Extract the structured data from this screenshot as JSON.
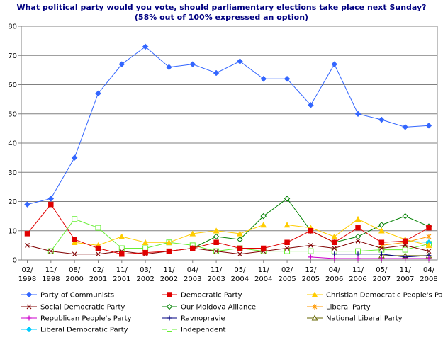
{
  "chart_data": {
    "type": "line",
    "title": "What political party would you vote, should parliamentary elections take place next Sunday?",
    "subtitle": "(58% out of 100% expressed an option)",
    "xlabel": "",
    "ylabel": "",
    "ylim": [
      0,
      80
    ],
    "yticks": [
      0,
      10,
      20,
      30,
      40,
      50,
      60,
      70,
      80
    ],
    "grid": true,
    "legend_position": "bottom",
    "categories": [
      {
        "top": "02/",
        "bottom": "1998"
      },
      {
        "top": "11/",
        "bottom": "1998"
      },
      {
        "top": "08/",
        "bottom": "2000"
      },
      {
        "top": "02/",
        "bottom": "2001"
      },
      {
        "top": "11/",
        "bottom": "2001"
      },
      {
        "top": "03/",
        "bottom": "2002"
      },
      {
        "top": "11/",
        "bottom": "2002"
      },
      {
        "top": "04/",
        "bottom": "2003"
      },
      {
        "top": "11/",
        "bottom": "2003"
      },
      {
        "top": "05/",
        "bottom": "2004"
      },
      {
        "top": "11/",
        "bottom": "2004"
      },
      {
        "top": "02/",
        "bottom": "2005"
      },
      {
        "top": "12/",
        "bottom": "2005"
      },
      {
        "top": "04/",
        "bottom": "2006"
      },
      {
        "top": "11/",
        "bottom": "2006"
      },
      {
        "top": "05/",
        "bottom": "2007"
      },
      {
        "top": "11/",
        "bottom": "2007"
      },
      {
        "top": "04/",
        "bottom": "2008"
      }
    ],
    "series": [
      {
        "name": "Party of Communists",
        "color": "#3366ff",
        "marker": "diamond",
        "values": [
          19,
          21,
          35,
          57,
          67,
          73,
          66,
          67,
          64,
          68,
          62,
          62,
          53,
          67,
          50,
          48,
          45.5,
          46
        ]
      },
      {
        "name": "Democratic Party",
        "color": "#e00000",
        "marker": "square",
        "values": [
          9,
          19,
          7,
          4,
          2,
          2.5,
          3,
          4,
          6,
          4,
          4,
          6,
          10,
          6,
          11,
          6,
          6.5,
          11
        ]
      },
      {
        "name": "Christian Democratic People's Party",
        "color": "#ffcc00",
        "marker": "triangle",
        "values": [
          null,
          null,
          6,
          5,
          8,
          6,
          6,
          9,
          10,
          9,
          12,
          12,
          11,
          8,
          14,
          10,
          7,
          5
        ]
      },
      {
        "name": "Social Democratic Party",
        "color": "#800000",
        "marker": "x",
        "values": [
          5,
          3,
          2,
          2,
          3,
          2,
          3,
          4,
          3,
          2,
          3,
          4,
          5,
          4,
          6.5,
          4,
          5,
          3
        ]
      },
      {
        "name": "Our Moldova Alliance",
        "color": "#008000",
        "marker": "open-diamond",
        "values": [
          null,
          null,
          null,
          null,
          null,
          null,
          null,
          4,
          8,
          7,
          15,
          21,
          10,
          6,
          8,
          12,
          15,
          11.5
        ]
      },
      {
        "name": "Liberal Party",
        "color": "#ff9900",
        "marker": "star",
        "values": [
          null,
          null,
          null,
          null,
          null,
          null,
          null,
          null,
          null,
          null,
          null,
          null,
          null,
          null,
          null,
          5,
          6,
          8
        ]
      },
      {
        "name": "Republican People's Party",
        "color": "#cc00cc",
        "marker": "plus",
        "values": [
          null,
          null,
          null,
          null,
          null,
          null,
          null,
          null,
          null,
          null,
          null,
          null,
          1,
          0.5,
          0.5,
          0.5,
          0.5,
          0.5
        ]
      },
      {
        "name": "Ravnopravie",
        "color": "#000080",
        "marker": "plus",
        "values": [
          null,
          null,
          null,
          null,
          null,
          null,
          null,
          null,
          null,
          null,
          null,
          null,
          null,
          2,
          2,
          2,
          1,
          1.5
        ]
      },
      {
        "name": "National Liberal Party",
        "color": "#666600",
        "marker": "open-triangle",
        "values": [
          null,
          null,
          null,
          null,
          null,
          null,
          null,
          null,
          null,
          null,
          null,
          null,
          null,
          null,
          null,
          1.5,
          1.5,
          1.5
        ]
      },
      {
        "name": "Liberal Democratic Party",
        "color": "#00ccff",
        "marker": "diamond",
        "values": [
          null,
          null,
          null,
          null,
          null,
          null,
          null,
          null,
          null,
          null,
          null,
          null,
          null,
          null,
          null,
          null,
          6.5,
          6
        ]
      },
      {
        "name": "Independent",
        "color": "#66ee33",
        "marker": "open-square",
        "values": [
          null,
          3,
          14,
          11,
          4,
          4,
          6,
          5,
          3,
          4,
          3,
          3,
          3,
          3,
          3,
          3.5,
          3.5,
          5.5
        ]
      }
    ]
  }
}
